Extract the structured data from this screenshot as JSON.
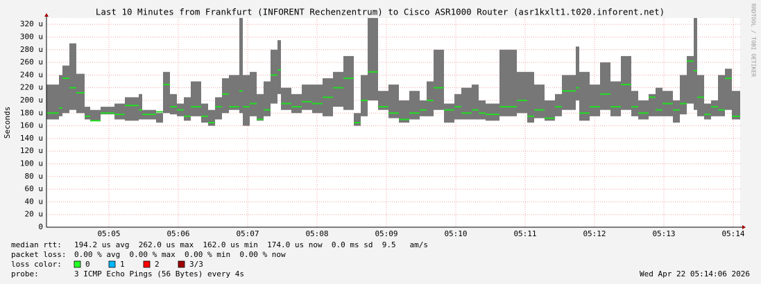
{
  "chart_data": {
    "type": "smokeping",
    "title": "Last 10 Minutes from Frankfurt (INFORENT Rechenzentrum) to Cisco ASR1000 Router (asr1kxlt1.t020.inforent.net)",
    "y_label": "Seconds",
    "xlim": [
      4.1,
      14.1
    ],
    "xticks": [
      {
        "value": 5,
        "label": "05:05"
      },
      {
        "value": 6,
        "label": "05:06"
      },
      {
        "value": 7,
        "label": "05:07"
      },
      {
        "value": 8,
        "label": "05:08"
      },
      {
        "value": 9,
        "label": "05:09"
      },
      {
        "value": 10,
        "label": "05:10"
      },
      {
        "value": 11,
        "label": "05:11"
      },
      {
        "value": 12,
        "label": "05:12"
      },
      {
        "value": 13,
        "label": "05:13"
      },
      {
        "value": 14,
        "label": "05:14"
      }
    ],
    "ylim": [
      0,
      330
    ],
    "yticks": [
      0,
      {
        "value": 20,
        "label": "20 u"
      },
      {
        "value": 40,
        "label": "40 u"
      },
      {
        "value": 60,
        "label": "60 u"
      },
      {
        "value": 80,
        "label": "80 u"
      },
      {
        "value": 100,
        "label": "100 u"
      },
      {
        "value": 120,
        "label": "120 u"
      },
      {
        "value": 140,
        "label": "140 u"
      },
      {
        "value": 160,
        "label": "160 u"
      },
      {
        "value": 180,
        "label": "180 u"
      },
      {
        "value": 200,
        "label": "200 u"
      },
      {
        "value": 220,
        "label": "220 u"
      },
      {
        "value": 240,
        "label": "240 u"
      },
      {
        "value": 260,
        "label": "260 u"
      },
      {
        "value": 280,
        "label": "280 u"
      },
      {
        "value": 300,
        "label": "300 u"
      },
      {
        "value": 320,
        "label": "320 u"
      }
    ],
    "grid": true,
    "range_color": "#777777",
    "median_color": "#22dd22",
    "x": [
      4.1,
      4.28,
      4.33,
      4.43,
      4.53,
      4.65,
      4.73,
      4.88,
      5.08,
      5.23,
      5.43,
      5.48,
      5.68,
      5.78,
      5.88,
      5.98,
      6.08,
      6.18,
      6.33,
      6.43,
      6.53,
      6.63,
      6.73,
      6.88,
      6.93,
      7.03,
      7.13,
      7.23,
      7.33,
      7.43,
      7.48,
      7.63,
      7.78,
      7.93,
      8.08,
      8.23,
      8.38,
      8.53,
      8.63,
      8.73,
      8.88,
      9.03,
      9.18,
      9.33,
      9.48,
      9.58,
      9.68,
      9.83,
      9.98,
      10.08,
      10.23,
      10.33,
      10.43,
      10.63,
      10.88,
      11.03,
      11.13,
      11.28,
      11.43,
      11.53,
      11.73,
      11.78,
      11.93,
      12.08,
      12.23,
      12.38,
      12.53,
      12.63,
      12.78,
      12.88,
      12.98,
      13.13,
      13.23,
      13.33,
      13.43,
      13.48,
      13.58,
      13.68,
      13.78,
      13.88,
      13.98
    ],
    "max": [
      225,
      240,
      255,
      290,
      242,
      190,
      185,
      190,
      195,
      205,
      210,
      185,
      180,
      245,
      210,
      195,
      205,
      230,
      195,
      185,
      205,
      235,
      240,
      330,
      240,
      245,
      210,
      230,
      280,
      295,
      220,
      210,
      225,
      225,
      235,
      245,
      270,
      180,
      240,
      330,
      215,
      225,
      200,
      215,
      200,
      230,
      280,
      195,
      210,
      220,
      225,
      200,
      195,
      280,
      245,
      245,
      225,
      200,
      210,
      240,
      285,
      245,
      225,
      260,
      230,
      270,
      215,
      200,
      210,
      220,
      215,
      200,
      240,
      270,
      330,
      240,
      195,
      200,
      240,
      250,
      215
    ],
    "median": [
      180,
      188,
      235,
      220,
      212,
      175,
      168,
      180,
      178,
      192,
      185,
      178,
      182,
      225,
      190,
      185,
      175,
      190,
      175,
      165,
      190,
      210,
      190,
      215,
      190,
      195,
      170,
      185,
      240,
      248,
      195,
      190,
      198,
      195,
      205,
      220,
      235,
      165,
      200,
      245,
      190,
      180,
      170,
      180,
      185,
      200,
      220,
      185,
      190,
      180,
      185,
      180,
      178,
      190,
      200,
      175,
      185,
      172,
      190,
      215,
      220,
      180,
      190,
      210,
      190,
      225,
      190,
      180,
      205,
      185,
      195,
      185,
      195,
      262,
      247,
      205,
      178,
      190,
      185,
      235,
      175
    ],
    "min": [
      170,
      175,
      180,
      185,
      180,
      170,
      168,
      178,
      170,
      168,
      170,
      170,
      165,
      180,
      178,
      175,
      168,
      175,
      165,
      160,
      170,
      180,
      185,
      180,
      160,
      175,
      168,
      175,
      195,
      210,
      185,
      180,
      185,
      180,
      175,
      190,
      185,
      160,
      175,
      200,
      185,
      172,
      165,
      170,
      175,
      175,
      185,
      165,
      170,
      170,
      170,
      170,
      168,
      175,
      180,
      165,
      172,
      168,
      175,
      185,
      200,
      168,
      175,
      185,
      175,
      185,
      175,
      170,
      175,
      175,
      175,
      165,
      178,
      195,
      185,
      175,
      170,
      175,
      175,
      185,
      170
    ]
  },
  "footer": {
    "median_rtt": {
      "label": "median rtt:",
      "text": "194.2 us avg  262.0 us max  162.0 us min  174.0 us now  0.0 ms sd  9.5   am/s"
    },
    "packet_loss": {
      "label": "packet loss:",
      "text": "0.00 % avg  0.00 % max  0.00 % min  0.00 % now"
    },
    "loss_color": {
      "label": "loss color:",
      "items": [
        {
          "label": "0",
          "color": "#26ff26"
        },
        {
          "label": "1",
          "color": "#00b8ff"
        },
        {
          "label": "2",
          "color": "#ff0000"
        },
        {
          "label": "3/3",
          "color": "#a00000"
        }
      ]
    },
    "probe": {
      "label": "probe:",
      "text": "3 ICMP Echo Pings (56 Bytes) every 4s"
    },
    "timestamp": "Wed Apr 22 05:14:06 2026"
  },
  "watermark": "RRDTOOL / TOBI OETIKER"
}
